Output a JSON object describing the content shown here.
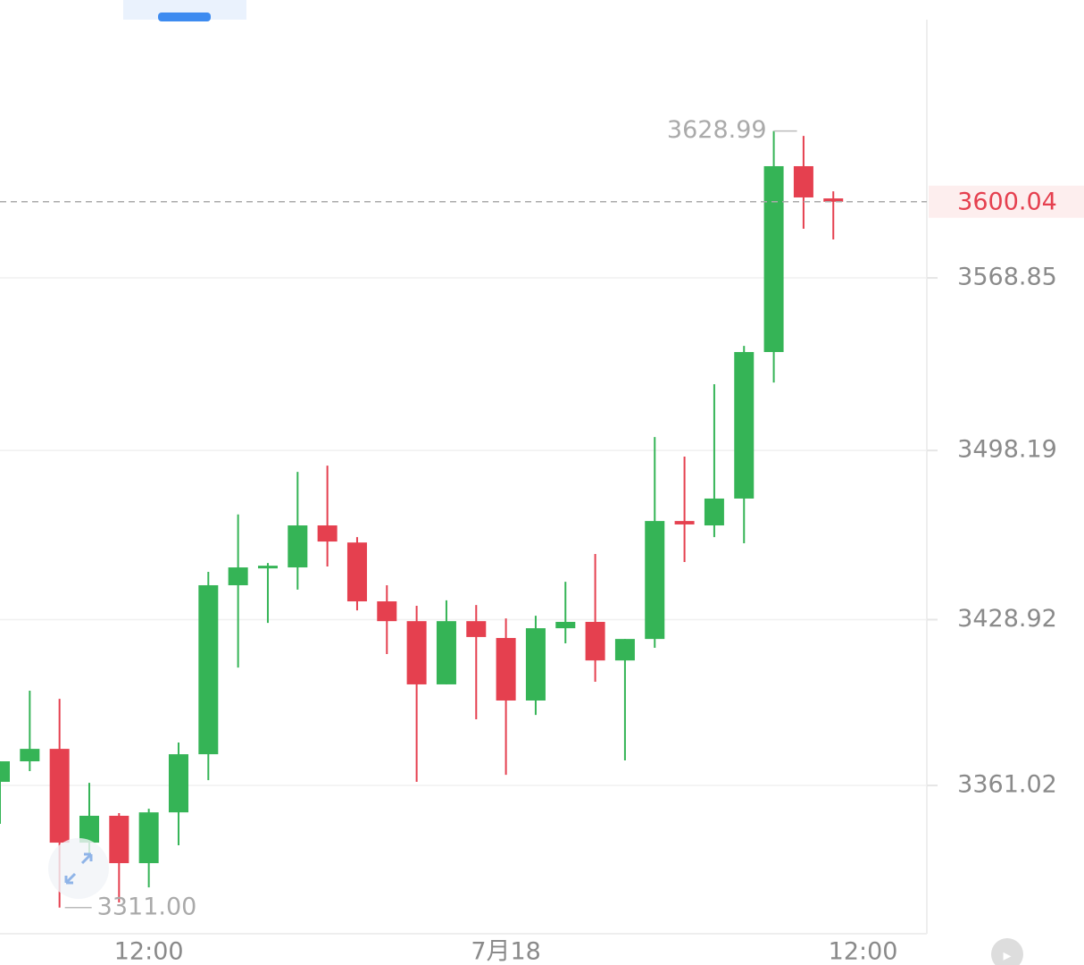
{
  "chart_data": {
    "type": "candlestick",
    "categories": [
      null,
      null,
      null,
      null,
      null,
      "12:00",
      null,
      null,
      null,
      null,
      null,
      null,
      null,
      null,
      null,
      null,
      null,
      "7月18",
      null,
      null,
      null,
      null,
      null,
      null,
      null,
      null,
      null,
      null,
      null,
      "12:00"
    ],
    "open": [
      3362.5,
      3370.9,
      3376.0,
      3337.6,
      3348.6,
      3329.2,
      3350.0,
      3373.8,
      3443.0,
      3449.9,
      3450.3,
      3467.5,
      3460.5,
      3436.4,
      3428.3,
      3402.4,
      3428.3,
      3421.4,
      3395.8,
      3425.4,
      3428.0,
      3412.2,
      3421.0,
      3469.3,
      3467.5,
      3478.5,
      3538.5,
      3614.6,
      3601.4,
      null
    ],
    "high": [
      3370.9,
      3399.8,
      3396.5,
      3362.1,
      3349.7,
      3351.5,
      3378.6,
      3448.5,
      3472.0,
      3452.1,
      3489.4,
      3492.0,
      3462.7,
      3443.0,
      3434.6,
      3436.8,
      3434.9,
      3429.4,
      3430.5,
      3444.4,
      3455.8,
      3421.0,
      3503.7,
      3495.7,
      3525.3,
      3541.0,
      3628.99,
      3627.0,
      3604.3,
      null
    ],
    "low": [
      3345.3,
      3366.9,
      3311.0,
      3333.2,
      3313.1,
      3319.3,
      3336.5,
      3363.2,
      3409.3,
      3427.6,
      3441.2,
      3450.7,
      3432.7,
      3414.8,
      3362.5,
      3402.4,
      3388.1,
      3365.4,
      3389.9,
      3419.2,
      3403.5,
      3371.3,
      3417.4,
      3452.5,
      3462.7,
      3460.2,
      3526.0,
      3589.0,
      3584.6,
      null
    ],
    "close": [
      3370.9,
      3376.0,
      3337.6,
      3348.6,
      3329.2,
      3350.0,
      3373.8,
      3443.0,
      3450.3,
      3451.0,
      3467.5,
      3460.9,
      3436.4,
      3428.3,
      3402.4,
      3428.3,
      3421.8,
      3395.8,
      3425.4,
      3428.0,
      3412.2,
      3421.0,
      3469.3,
      3467.9,
      3478.5,
      3538.5,
      3614.6,
      3601.8,
      3600.04,
      null
    ],
    "up_color": "#35b456",
    "down_color": "#e5404f",
    "ylim": [
      3300.3,
      3674.6
    ],
    "yticks": [
      3568.85,
      3498.19,
      3428.92,
      3361.02
    ],
    "grid": true,
    "last_price": 3600.04,
    "high_marker": 3628.99,
    "low_marker": {
      "value": 3311,
      "label": "3311.00"
    }
  }
}
